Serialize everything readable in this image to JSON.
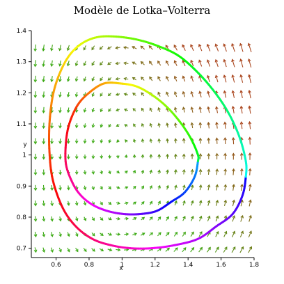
{
  "chart_data": {
    "type": "line",
    "title": "Modèle de Lotka–Volterra",
    "xlabel": "x",
    "ylabel": "y",
    "xlim": [
      0.45,
      1.8
    ],
    "ylim": [
      0.67,
      1.4
    ],
    "x_ticks": [
      0.6,
      0.8,
      1.0,
      1.2,
      1.4,
      1.6,
      1.8
    ],
    "x_tick_labels": [
      "0.6",
      "0.8",
      "1",
      "1.2",
      "1.4",
      "1.6",
      "1.8"
    ],
    "y_ticks": [
      0.7,
      0.8,
      0.9,
      1.0,
      1.1,
      1.2,
      1.3,
      1.4
    ],
    "y_tick_labels": [
      "0.7",
      "0.8",
      "0.9",
      "1",
      "1.1",
      "1.2",
      "1.3",
      "1.4"
    ],
    "grid": false,
    "legend": "none",
    "vector_field": {
      "model": "Lotka-Volterra: dx/dt = x(1 - y), dy/dt = y(x - 1)",
      "equilibrium": [
        1.0,
        1.0
      ],
      "grid_step": 0.05
    },
    "series": [
      {
        "x": [
          1.75,
          1.73,
          1.67,
          1.57,
          1.46,
          1.32,
          1.18,
          1.05,
          0.93,
          0.82,
          0.72,
          0.64,
          0.58,
          0.56,
          0.56,
          0.58,
          0.62,
          0.68,
          0.76,
          0.86,
          0.98,
          1.1,
          1.22,
          1.34,
          1.45,
          1.55,
          1.64,
          1.71,
          1.75
        ],
        "y": [
          0.93,
          0.87,
          0.81,
          0.77,
          0.73,
          0.71,
          0.7,
          0.7,
          0.71,
          0.73,
          0.77,
          0.83,
          0.92,
          1.01,
          1.1,
          1.19,
          1.26,
          1.32,
          1.36,
          1.38,
          1.38,
          1.37,
          1.35,
          1.32,
          1.27,
          1.21,
          1.14,
          1.06,
          0.98
        ]
      },
      {
        "x": [
          1.46,
          1.44,
          1.38,
          1.3,
          1.21,
          1.11,
          1.01,
          0.91,
          0.82,
          0.75,
          0.7,
          0.66,
          0.66,
          0.68,
          0.73,
          0.8,
          0.89,
          0.99,
          1.09,
          1.19,
          1.28,
          1.36,
          1.42,
          1.46
        ],
        "y": [
          0.98,
          0.93,
          0.88,
          0.85,
          0.82,
          0.81,
          0.81,
          0.82,
          0.84,
          0.87,
          0.91,
          0.97,
          1.04,
          1.1,
          1.16,
          1.2,
          1.23,
          1.23,
          1.22,
          1.19,
          1.15,
          1.1,
          1.05,
          1.0
        ]
      }
    ]
  }
}
